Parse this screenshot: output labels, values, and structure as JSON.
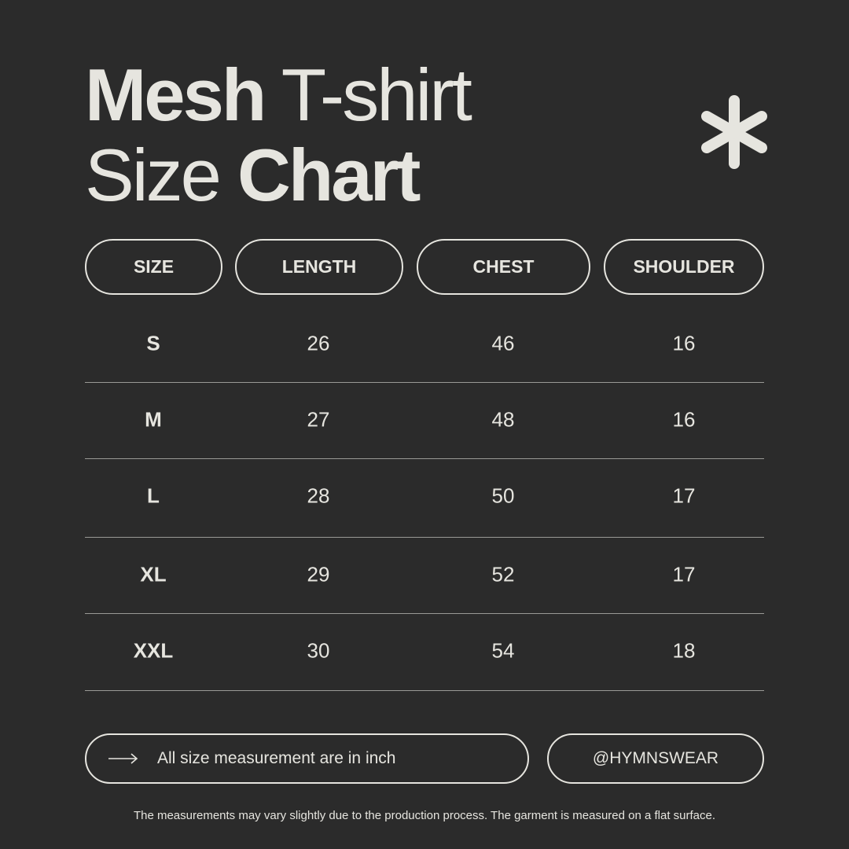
{
  "title": {
    "line1_bold": "Mesh",
    "line1_light": "T-shirt",
    "line2_light": "Size",
    "line2_bold": "Chart"
  },
  "decoration": {
    "icon": "asterisk-icon"
  },
  "table": {
    "headers": [
      "SIZE",
      "LENGTH",
      "CHEST",
      "SHOULDER"
    ],
    "rows": [
      [
        "S",
        "26",
        "46",
        "16"
      ],
      [
        "M",
        "27",
        "48",
        "16"
      ],
      [
        "L",
        "28",
        "50",
        "17"
      ],
      [
        "XL",
        "29",
        "52",
        "17"
      ],
      [
        "XXL",
        "30",
        "54",
        "18"
      ]
    ]
  },
  "note": {
    "icon": "arrow-right-icon",
    "text": "All size measurement are in inch"
  },
  "handle": "@HYMNSWEAR",
  "footer": "The measurements may vary slightly due to the production process. The garment is measured on a flat surface.",
  "colors": {
    "background": "#2b2b2b",
    "foreground": "#e6e5df"
  }
}
